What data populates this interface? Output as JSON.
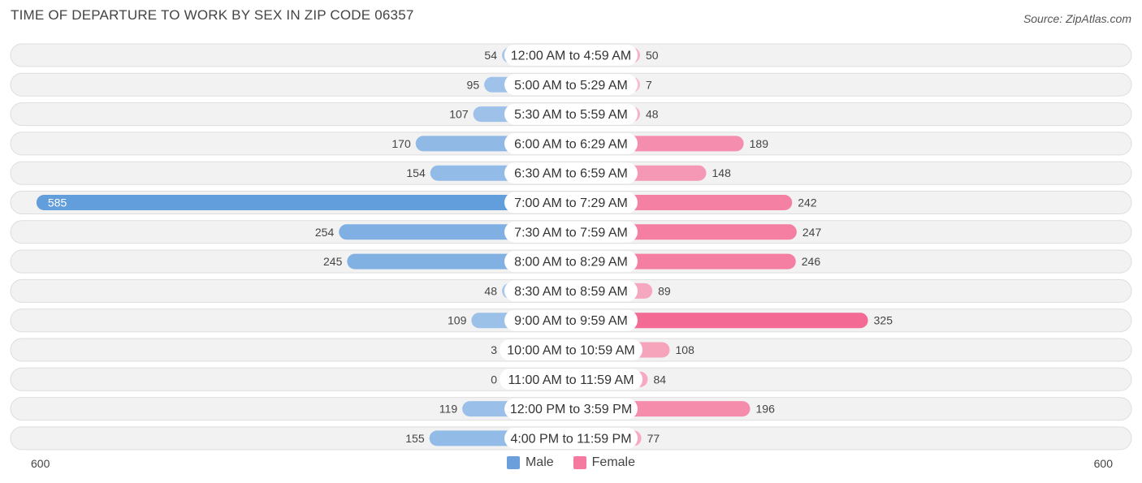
{
  "title": "TIME OF DEPARTURE TO WORK BY SEX IN ZIP CODE 06357",
  "source": "Source: ZipAtlas.com",
  "axis": {
    "left_label": "600",
    "right_label": "600"
  },
  "legend": [
    {
      "label": "Male",
      "color": "#6a9fdc"
    },
    {
      "label": "Female",
      "color": "#f47aa0"
    }
  ],
  "chart_data": {
    "type": "bar",
    "orientation": "horizontal-diverging",
    "categories": [
      "12:00 AM to 4:59 AM",
      "5:00 AM to 5:29 AM",
      "5:30 AM to 5:59 AM",
      "6:00 AM to 6:29 AM",
      "6:30 AM to 6:59 AM",
      "7:00 AM to 7:29 AM",
      "7:30 AM to 7:59 AM",
      "8:00 AM to 8:29 AM",
      "8:30 AM to 8:59 AM",
      "9:00 AM to 9:59 AM",
      "10:00 AM to 10:59 AM",
      "11:00 AM to 11:59 AM",
      "12:00 PM to 3:59 PM",
      "4:00 PM to 11:59 PM"
    ],
    "series": [
      {
        "name": "Male",
        "values": [
          54,
          95,
          107,
          170,
          154,
          585,
          254,
          245,
          48,
          109,
          3,
          0,
          119,
          155
        ]
      },
      {
        "name": "Female",
        "values": [
          50,
          7,
          48,
          189,
          148,
          242,
          247,
          246,
          89,
          325,
          108,
          84,
          196,
          77
        ]
      }
    ],
    "xlim": [
      -600,
      600
    ],
    "grid": false,
    "legend_position": "bottom-center"
  }
}
